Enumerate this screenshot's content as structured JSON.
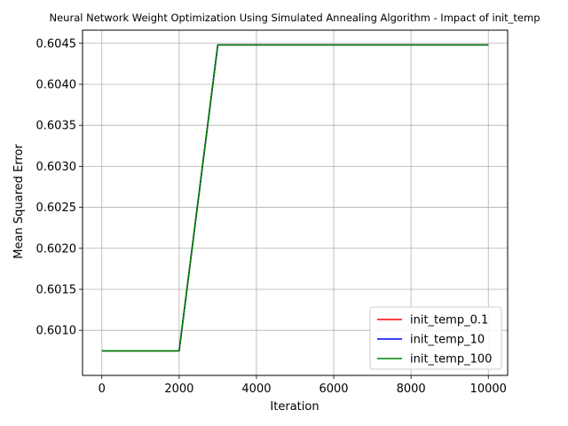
{
  "chart_data": {
    "type": "line",
    "title": "Neural Network Weight Optimization Using Simulated Annealing Algorithm - Impact of init_temp",
    "xlabel": "Iteration",
    "ylabel": "Mean Squared Error",
    "xlim": [
      -500,
      10500
    ],
    "ylim": [
      0.60045,
      0.60466
    ],
    "xticks": [
      0,
      2000,
      4000,
      6000,
      8000,
      10000
    ],
    "yticks": [
      0.601,
      0.6015,
      0.602,
      0.6025,
      0.603,
      0.6035,
      0.604,
      0.6045
    ],
    "xtick_labels": [
      "0",
      "2000",
      "4000",
      "6000",
      "8000",
      "10000"
    ],
    "ytick_labels": [
      "0.6010",
      "0.6015",
      "0.6020",
      "0.6025",
      "0.6030",
      "0.6035",
      "0.6040",
      "0.6045"
    ],
    "grid": true,
    "legend_position": "bottom-right",
    "series": [
      {
        "name": "init_temp_0.1",
        "color": "#ff0000",
        "x": [
          0,
          1000,
          2000,
          3000,
          4000,
          5000,
          6000,
          7000,
          8000,
          9000,
          10000
        ],
        "y": [
          0.60075,
          0.60075,
          0.60075,
          0.60448,
          0.60448,
          0.60448,
          0.60448,
          0.60448,
          0.60448,
          0.60448,
          0.60448
        ]
      },
      {
        "name": "init_temp_10",
        "color": "#0000ff",
        "x": [
          0,
          1000,
          2000,
          3000,
          4000,
          5000,
          6000,
          7000,
          8000,
          9000,
          10000
        ],
        "y": [
          0.60075,
          0.60075,
          0.60075,
          0.60448,
          0.60448,
          0.60448,
          0.60448,
          0.60448,
          0.60448,
          0.60448,
          0.60448
        ]
      },
      {
        "name": "init_temp_100",
        "color": "#008000",
        "x": [
          0,
          1000,
          2000,
          3000,
          4000,
          5000,
          6000,
          7000,
          8000,
          9000,
          10000
        ],
        "y": [
          0.60075,
          0.60075,
          0.60075,
          0.60448,
          0.60448,
          0.60448,
          0.60448,
          0.60448,
          0.60448,
          0.60448,
          0.60448
        ]
      }
    ]
  }
}
